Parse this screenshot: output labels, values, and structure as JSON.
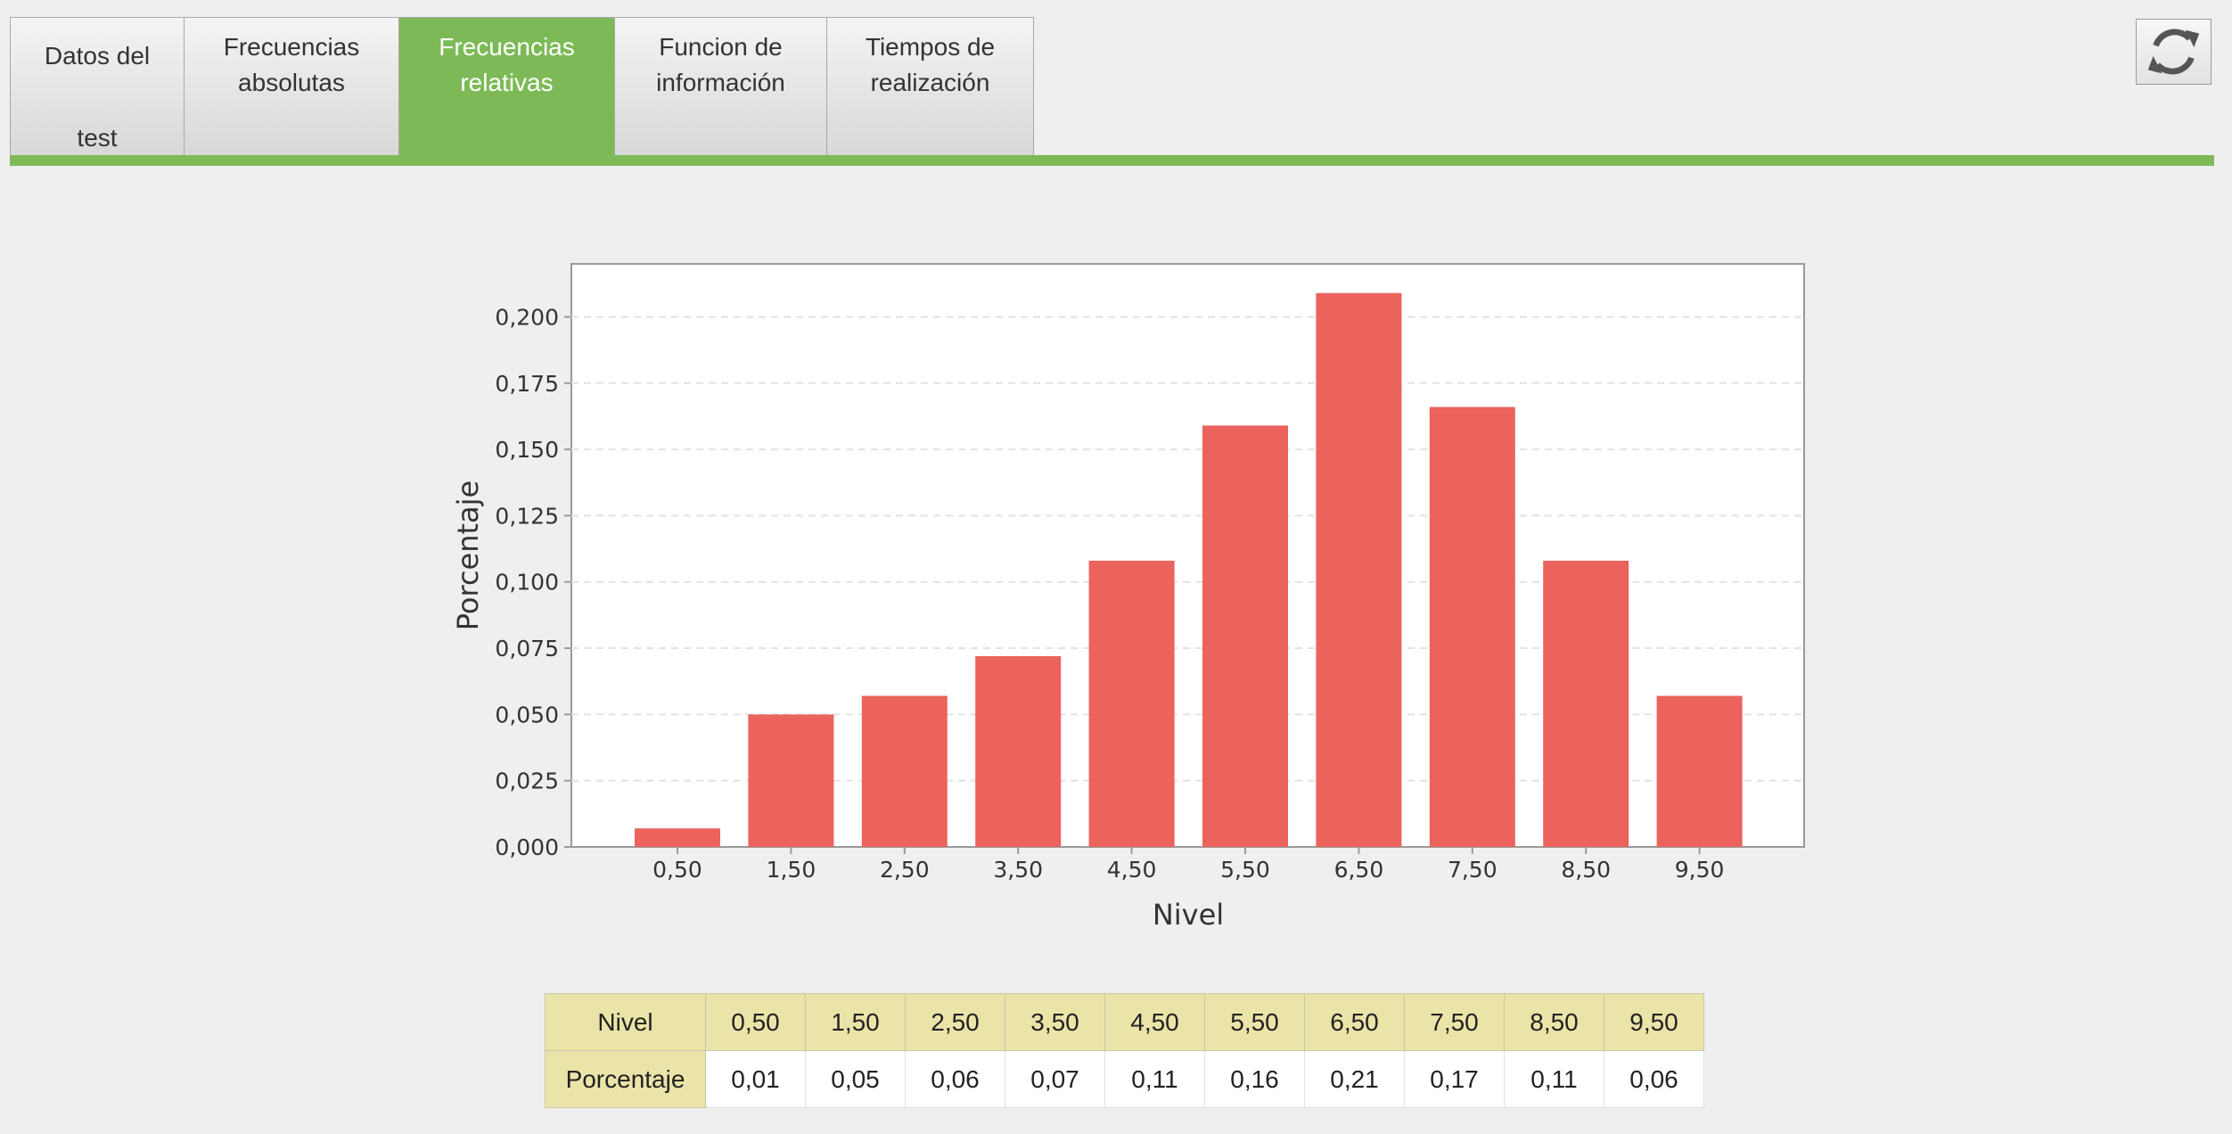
{
  "tabs": [
    {
      "label": "Datos del\n\ntest",
      "active": false
    },
    {
      "label": "Frecuencias\nabsolutas",
      "active": false
    },
    {
      "label": "Frecuencias\nrelativas",
      "active": true
    },
    {
      "label": "Funcion de\ninformación",
      "active": false
    },
    {
      "label": "Tiempos de\nrealización",
      "active": false
    }
  ],
  "refresh_icon": "refresh-icon",
  "colors": {
    "accent": "#7dba57",
    "bar": "#ec625d",
    "table_header": "#ebe4a8"
  },
  "chart_data": {
    "type": "bar",
    "categories": [
      "0,50",
      "1,50",
      "2,50",
      "3,50",
      "4,50",
      "5,50",
      "6,50",
      "7,50",
      "8,50",
      "9,50"
    ],
    "values": [
      0.007,
      0.05,
      0.057,
      0.072,
      0.108,
      0.159,
      0.209,
      0.166,
      0.108,
      0.057
    ],
    "xlabel": "Nivel",
    "ylabel": "Porcentaje",
    "ylim": [
      0,
      0.22
    ],
    "yticks": [
      "0,000",
      "0,025",
      "0,050",
      "0,075",
      "0,100",
      "0,125",
      "0,150",
      "0,175",
      "0,200"
    ],
    "grid": true
  },
  "table": {
    "row1_header": "Nivel",
    "row1": [
      "0,50",
      "1,50",
      "2,50",
      "3,50",
      "4,50",
      "5,50",
      "6,50",
      "7,50",
      "8,50",
      "9,50"
    ],
    "row2_header": "Porcentaje",
    "row2": [
      "0,01",
      "0,05",
      "0,06",
      "0,07",
      "0,11",
      "0,16",
      "0,21",
      "0,17",
      "0,11",
      "0,06"
    ]
  }
}
